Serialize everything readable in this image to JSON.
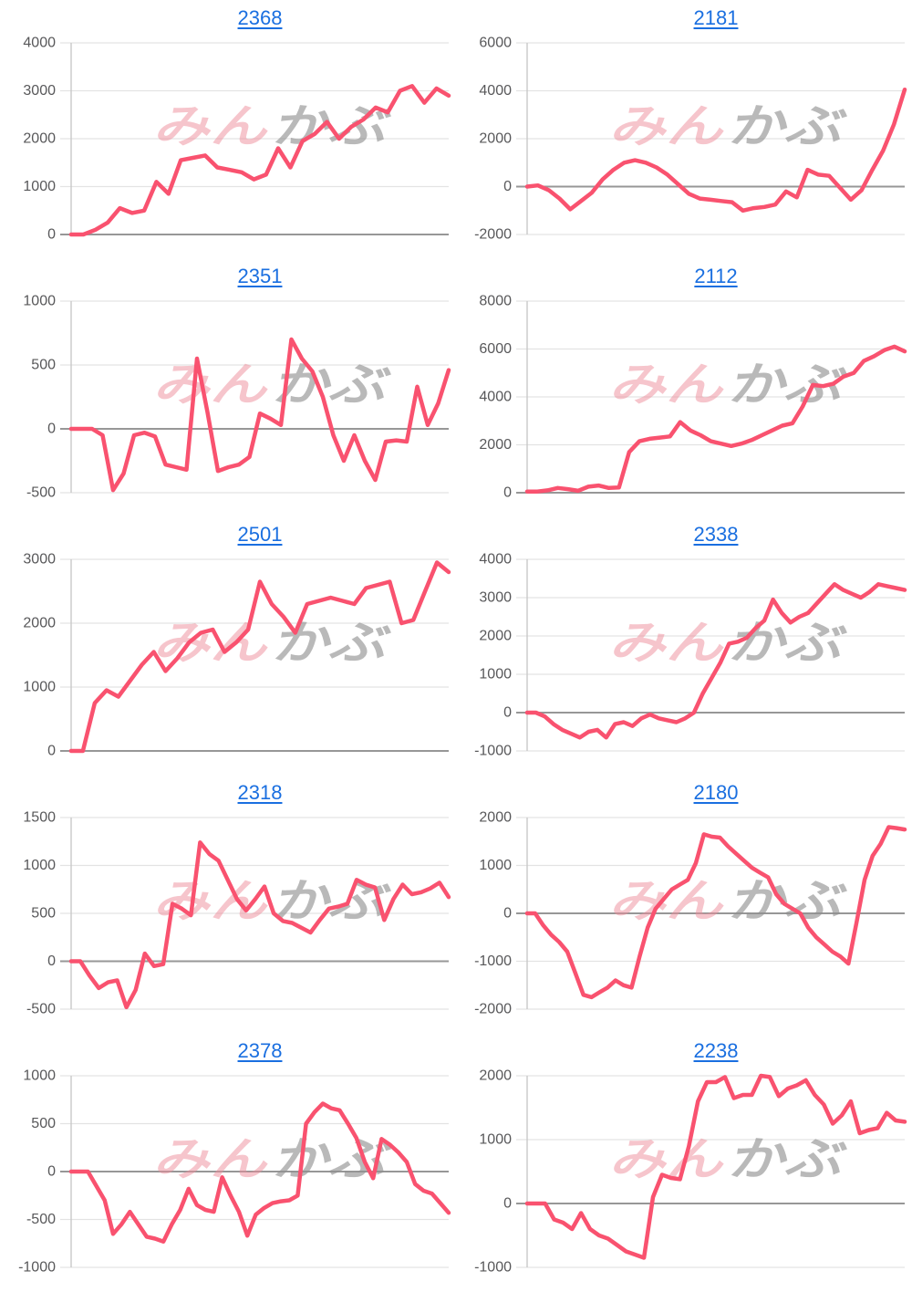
{
  "page": {
    "background": "#ffffff"
  },
  "watermark": {
    "text_pink": "みん",
    "text_gray": "かぶ",
    "pink_color": "#ef8d9a",
    "gray_color": "#8f8f8f",
    "pink_opacity": 0.5,
    "gray_opacity": 0.62
  },
  "styles": {
    "line_color": "#f9526f",
    "title_color": "#1a6fe0",
    "axis_label_color": "#58585a",
    "grid_color": "#e3e3e3",
    "zero_line_color": "#979797",
    "axis_border_color": "#c9c9c9"
  },
  "chart_data": [
    {
      "type": "line",
      "title": "2368",
      "grid": true,
      "legend": "none",
      "ylim": [
        0,
        4000
      ],
      "yticks": [
        0,
        1000,
        2000,
        3000,
        4000
      ],
      "values": [
        0,
        0,
        100,
        250,
        550,
        450,
        500,
        1100,
        850,
        1550,
        1600,
        1650,
        1400,
        1350,
        1300,
        1150,
        1250,
        1800,
        1400,
        1950,
        2100,
        2350,
        2000,
        2250,
        2400,
        2650,
        2550,
        3000,
        3100,
        2750,
        3050,
        2900
      ]
    },
    {
      "type": "line",
      "title": "2181",
      "grid": true,
      "legend": "none",
      "ylim": [
        -2000,
        6000
      ],
      "yticks": [
        -2000,
        0,
        2000,
        4000,
        6000
      ],
      "values": [
        0,
        50,
        -150,
        -500,
        -950,
        -600,
        -250,
        300,
        700,
        1000,
        1100,
        1000,
        800,
        500,
        100,
        -300,
        -500,
        -550,
        -600,
        -650,
        -1000,
        -900,
        -850,
        -750,
        -200,
        -450,
        700,
        500,
        450,
        -50,
        -550,
        -150,
        700,
        1500,
        2600,
        4050
      ]
    },
    {
      "type": "line",
      "title": "2351",
      "grid": true,
      "legend": "none",
      "ylim": [
        -500,
        1000
      ],
      "yticks": [
        -500,
        0,
        500,
        1000
      ],
      "values": [
        0,
        0,
        0,
        -50,
        -480,
        -350,
        -50,
        -30,
        -60,
        -280,
        -300,
        -320,
        550,
        130,
        -330,
        -300,
        -280,
        -220,
        120,
        80,
        30,
        700,
        550,
        450,
        250,
        -50,
        -250,
        -50,
        -250,
        -400,
        -100,
        -90,
        -100,
        330,
        30,
        200,
        460
      ]
    },
    {
      "type": "line",
      "title": "2112",
      "grid": true,
      "legend": "none",
      "ylim": [
        0,
        8000
      ],
      "yticks": [
        0,
        2000,
        4000,
        6000,
        8000
      ],
      "values": [
        50,
        50,
        100,
        200,
        150,
        80,
        250,
        300,
        200,
        220,
        1700,
        2150,
        2250,
        2300,
        2350,
        2950,
        2600,
        2400,
        2150,
        2050,
        1950,
        2050,
        2200,
        2400,
        2600,
        2800,
        2900,
        3600,
        4500,
        4450,
        4550,
        4850,
        5000,
        5500,
        5700,
        5950,
        6100,
        5900
      ]
    },
    {
      "type": "line",
      "title": "2501",
      "grid": true,
      "legend": "none",
      "ylim": [
        0,
        3000
      ],
      "yticks": [
        0,
        1000,
        2000,
        3000
      ],
      "values": [
        0,
        0,
        750,
        950,
        850,
        1100,
        1350,
        1550,
        1250,
        1450,
        1700,
        1850,
        1900,
        1550,
        1700,
        1900,
        2650,
        2300,
        2100,
        1850,
        2300,
        2350,
        2400,
        2350,
        2300,
        2550,
        2600,
        2650,
        2000,
        2050,
        2500,
        2950,
        2800
      ]
    },
    {
      "type": "line",
      "title": "2338",
      "grid": true,
      "legend": "none",
      "ylim": [
        -1000,
        4000
      ],
      "yticks": [
        -1000,
        0,
        1000,
        2000,
        3000,
        4000
      ],
      "values": [
        0,
        0,
        -100,
        -300,
        -450,
        -550,
        -650,
        -500,
        -450,
        -650,
        -300,
        -250,
        -350,
        -150,
        -50,
        -150,
        -200,
        -250,
        -150,
        0,
        500,
        900,
        1300,
        1800,
        1850,
        1950,
        2200,
        2400,
        2950,
        2600,
        2350,
        2500,
        2600,
        2850,
        3100,
        3350,
        3200,
        3100,
        3000,
        3150,
        3350,
        3300,
        3250,
        3200
      ]
    },
    {
      "type": "line",
      "title": "2318",
      "grid": true,
      "legend": "none",
      "ylim": [
        -500,
        1500
      ],
      "yticks": [
        -500,
        0,
        500,
        1000,
        1500
      ],
      "values": [
        0,
        0,
        -150,
        -280,
        -220,
        -200,
        -480,
        -300,
        80,
        -50,
        -30,
        600,
        550,
        480,
        1240,
        1120,
        1050,
        850,
        650,
        530,
        650,
        780,
        500,
        420,
        400,
        350,
        300,
        430,
        550,
        570,
        600,
        850,
        800,
        770,
        430,
        650,
        800,
        700,
        720,
        760,
        820,
        670
      ]
    },
    {
      "type": "line",
      "title": "2180",
      "grid": true,
      "legend": "none",
      "ylim": [
        -2000,
        2000
      ],
      "yticks": [
        -2000,
        -1000,
        0,
        1000,
        2000
      ],
      "values": [
        0,
        0,
        -250,
        -450,
        -600,
        -800,
        -1250,
        -1700,
        -1750,
        -1650,
        -1550,
        -1400,
        -1500,
        -1550,
        -900,
        -300,
        100,
        300,
        500,
        600,
        700,
        1050,
        1650,
        1600,
        1580,
        1400,
        1250,
        1100,
        950,
        850,
        750,
        400,
        200,
        100,
        0,
        -300,
        -500,
        -650,
        -800,
        -900,
        -1050,
        -200,
        700,
        1200,
        1450,
        1800,
        1780,
        1750
      ]
    },
    {
      "type": "line",
      "title": "2378",
      "grid": true,
      "legend": "none",
      "ylim": [
        -1000,
        1000
      ],
      "yticks": [
        -1000,
        -500,
        0,
        500,
        1000
      ],
      "values": [
        0,
        0,
        0,
        -150,
        -300,
        -650,
        -550,
        -420,
        -550,
        -680,
        -700,
        -730,
        -550,
        -400,
        -180,
        -350,
        -400,
        -420,
        -60,
        -250,
        -420,
        -670,
        -450,
        -380,
        -330,
        -310,
        -300,
        -250,
        500,
        620,
        710,
        660,
        640,
        500,
        350,
        100,
        -70,
        340,
        280,
        200,
        100,
        -130,
        -200,
        -230,
        -330,
        -430
      ]
    },
    {
      "type": "line",
      "title": "2238",
      "grid": true,
      "legend": "none",
      "ylim": [
        -1000,
        2000
      ],
      "yticks": [
        -1000,
        0,
        1000,
        2000
      ],
      "values": [
        0,
        0,
        0,
        -250,
        -300,
        -400,
        -150,
        -400,
        -500,
        -550,
        -650,
        -750,
        -800,
        -850,
        100,
        450,
        400,
        380,
        900,
        1600,
        1900,
        1900,
        1980,
        1650,
        1700,
        1700,
        2000,
        1980,
        1680,
        1800,
        1850,
        1930,
        1700,
        1550,
        1250,
        1380,
        1600,
        1100,
        1150,
        1180,
        1420,
        1300,
        1280
      ]
    }
  ]
}
